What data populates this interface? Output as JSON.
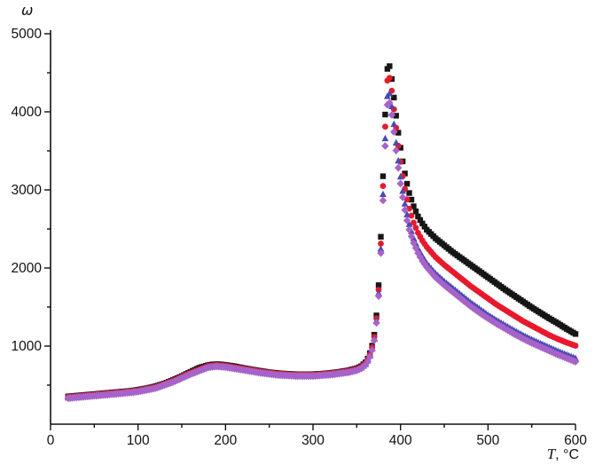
{
  "chart_data": {
    "type": "scatter",
    "title": "",
    "ylabel": "ω",
    "xlabel_symbol": "T",
    "xlabel_rest": ", °C",
    "xlim": [
      0,
      600
    ],
    "ylim": [
      0,
      5000
    ],
    "xticks": [
      0,
      100,
      200,
      300,
      400,
      500,
      600
    ],
    "yticks": [
      1000,
      2000,
      3000,
      4000,
      5000
    ],
    "x_minor_step": 50,
    "y_minor_step": 500,
    "grid": false,
    "legend": "none",
    "axis_color": "#111111",
    "sample_step": 2.5,
    "series": [
      {
        "name": "black-squares",
        "marker": "square",
        "color": "#161616",
        "peak": {
          "x": 386,
          "y": 4630
        },
        "anchors": [
          [
            20,
            355
          ],
          [
            30,
            365
          ],
          [
            40,
            375
          ],
          [
            50,
            385
          ],
          [
            60,
            395
          ],
          [
            70,
            405
          ],
          [
            80,
            415
          ],
          [
            90,
            425
          ],
          [
            100,
            440
          ],
          [
            110,
            460
          ],
          [
            120,
            485
          ],
          [
            130,
            520
          ],
          [
            140,
            565
          ],
          [
            150,
            615
          ],
          [
            160,
            670
          ],
          [
            170,
            722
          ],
          [
            180,
            755
          ],
          [
            185,
            765
          ],
          [
            190,
            768
          ],
          [
            195,
            765
          ],
          [
            200,
            758
          ],
          [
            210,
            742
          ],
          [
            220,
            720
          ],
          [
            230,
            700
          ],
          [
            240,
            682
          ],
          [
            250,
            665
          ],
          [
            260,
            653
          ],
          [
            270,
            645
          ],
          [
            280,
            640
          ],
          [
            290,
            638
          ],
          [
            300,
            640
          ],
          [
            310,
            646
          ],
          [
            320,
            656
          ],
          [
            330,
            670
          ],
          [
            340,
            688
          ],
          [
            350,
            715
          ],
          [
            355,
            742
          ],
          [
            360,
            792
          ],
          [
            363,
            850
          ],
          [
            366,
            940
          ],
          [
            369,
            1070
          ],
          [
            371,
            1220
          ],
          [
            373,
            1450
          ],
          [
            375,
            1780
          ],
          [
            377,
            2250
          ],
          [
            379,
            2850
          ],
          [
            381,
            3500
          ],
          [
            383,
            4120
          ],
          [
            385,
            4550
          ],
          [
            386,
            4630
          ],
          [
            388,
            4570
          ],
          [
            390,
            4420
          ],
          [
            392,
            4230
          ],
          [
            394,
            4040
          ],
          [
            396,
            3860
          ],
          [
            398,
            3690
          ],
          [
            400,
            3540
          ],
          [
            403,
            3330
          ],
          [
            406,
            3150
          ],
          [
            410,
            2960
          ],
          [
            415,
            2790
          ],
          [
            420,
            2660
          ],
          [
            425,
            2570
          ],
          [
            430,
            2490
          ],
          [
            440,
            2380
          ],
          [
            450,
            2290
          ],
          [
            460,
            2200
          ],
          [
            470,
            2120
          ],
          [
            480,
            2040
          ],
          [
            490,
            1960
          ],
          [
            500,
            1880
          ],
          [
            510,
            1800
          ],
          [
            520,
            1720
          ],
          [
            530,
            1645
          ],
          [
            540,
            1570
          ],
          [
            550,
            1495
          ],
          [
            560,
            1425
          ],
          [
            570,
            1355
          ],
          [
            580,
            1290
          ],
          [
            590,
            1220
          ],
          [
            600,
            1155
          ]
        ]
      },
      {
        "name": "red-circles",
        "marker": "circle",
        "color": "#e8192c",
        "peak": {
          "x": 386,
          "y": 4480
        },
        "anchors": [
          [
            20,
            348
          ],
          [
            40,
            368
          ],
          [
            60,
            388
          ],
          [
            80,
            408
          ],
          [
            100,
            432
          ],
          [
            120,
            476
          ],
          [
            140,
            556
          ],
          [
            160,
            660
          ],
          [
            180,
            745
          ],
          [
            190,
            758
          ],
          [
            200,
            748
          ],
          [
            220,
            712
          ],
          [
            240,
            674
          ],
          [
            260,
            646
          ],
          [
            280,
            633
          ],
          [
            300,
            633
          ],
          [
            320,
            649
          ],
          [
            340,
            680
          ],
          [
            350,
            706
          ],
          [
            355,
            732
          ],
          [
            360,
            780
          ],
          [
            363,
            836
          ],
          [
            366,
            922
          ],
          [
            369,
            1045
          ],
          [
            371,
            1190
          ],
          [
            373,
            1410
          ],
          [
            375,
            1720
          ],
          [
            377,
            2170
          ],
          [
            379,
            2740
          ],
          [
            381,
            3360
          ],
          [
            383,
            3960
          ],
          [
            385,
            4400
          ],
          [
            386,
            4480
          ],
          [
            388,
            4420
          ],
          [
            390,
            4270
          ],
          [
            392,
            4080
          ],
          [
            394,
            3890
          ],
          [
            396,
            3700
          ],
          [
            398,
            3520
          ],
          [
            400,
            3360
          ],
          [
            403,
            3140
          ],
          [
            406,
            2950
          ],
          [
            410,
            2760
          ],
          [
            415,
            2580
          ],
          [
            420,
            2450
          ],
          [
            425,
            2350
          ],
          [
            430,
            2270
          ],
          [
            440,
            2140
          ],
          [
            450,
            2040
          ],
          [
            460,
            1950
          ],
          [
            470,
            1860
          ],
          [
            480,
            1770
          ],
          [
            490,
            1690
          ],
          [
            500,
            1610
          ],
          [
            510,
            1530
          ],
          [
            520,
            1460
          ],
          [
            530,
            1390
          ],
          [
            540,
            1320
          ],
          [
            550,
            1260
          ],
          [
            560,
            1200
          ],
          [
            570,
            1140
          ],
          [
            580,
            1090
          ],
          [
            590,
            1045
          ],
          [
            600,
            1005
          ]
        ]
      },
      {
        "name": "blue-triangles",
        "marker": "triangle",
        "color": "#4a4ab2",
        "peak": {
          "x": 386,
          "y": 4280
        },
        "anchors": [
          [
            20,
            340
          ],
          [
            40,
            360
          ],
          [
            60,
            380
          ],
          [
            80,
            400
          ],
          [
            100,
            424
          ],
          [
            120,
            468
          ],
          [
            140,
            548
          ],
          [
            160,
            650
          ],
          [
            180,
            735
          ],
          [
            190,
            748
          ],
          [
            200,
            738
          ],
          [
            220,
            702
          ],
          [
            240,
            664
          ],
          [
            260,
            636
          ],
          [
            280,
            624
          ],
          [
            300,
            624
          ],
          [
            320,
            640
          ],
          [
            340,
            670
          ],
          [
            350,
            696
          ],
          [
            355,
            722
          ],
          [
            360,
            768
          ],
          [
            363,
            822
          ],
          [
            366,
            905
          ],
          [
            369,
            1025
          ],
          [
            371,
            1165
          ],
          [
            373,
            1380
          ],
          [
            375,
            1680
          ],
          [
            377,
            2110
          ],
          [
            379,
            2650
          ],
          [
            381,
            3240
          ],
          [
            383,
            3800
          ],
          [
            385,
            4200
          ],
          [
            386,
            4280
          ],
          [
            388,
            4220
          ],
          [
            390,
            4070
          ],
          [
            392,
            3890
          ],
          [
            394,
            3700
          ],
          [
            396,
            3510
          ],
          [
            398,
            3330
          ],
          [
            400,
            3170
          ],
          [
            403,
            2950
          ],
          [
            406,
            2760
          ],
          [
            410,
            2560
          ],
          [
            415,
            2380
          ],
          [
            420,
            2250
          ],
          [
            425,
            2150
          ],
          [
            430,
            2060
          ],
          [
            440,
            1930
          ],
          [
            450,
            1830
          ],
          [
            460,
            1740
          ],
          [
            470,
            1650
          ],
          [
            480,
            1560
          ],
          [
            490,
            1480
          ],
          [
            500,
            1400
          ],
          [
            510,
            1330
          ],
          [
            520,
            1265
          ],
          [
            530,
            1200
          ],
          [
            540,
            1140
          ],
          [
            550,
            1085
          ],
          [
            560,
            1035
          ],
          [
            570,
            985
          ],
          [
            580,
            935
          ],
          [
            590,
            890
          ],
          [
            600,
            845
          ]
        ]
      },
      {
        "name": "violet-diamonds",
        "marker": "diamond",
        "color": "#a763c9",
        "peak": {
          "x": 386,
          "y": 4160
        },
        "anchors": [
          [
            20,
            332
          ],
          [
            40,
            352
          ],
          [
            60,
            372
          ],
          [
            80,
            392
          ],
          [
            100,
            416
          ],
          [
            120,
            460
          ],
          [
            140,
            540
          ],
          [
            160,
            640
          ],
          [
            180,
            726
          ],
          [
            190,
            740
          ],
          [
            200,
            730
          ],
          [
            220,
            694
          ],
          [
            240,
            656
          ],
          [
            260,
            628
          ],
          [
            280,
            616
          ],
          [
            300,
            616
          ],
          [
            320,
            632
          ],
          [
            340,
            662
          ],
          [
            350,
            688
          ],
          [
            355,
            714
          ],
          [
            360,
            758
          ],
          [
            363,
            810
          ],
          [
            366,
            890
          ],
          [
            369,
            1005
          ],
          [
            371,
            1140
          ],
          [
            373,
            1350
          ],
          [
            375,
            1640
          ],
          [
            377,
            2060
          ],
          [
            379,
            2580
          ],
          [
            381,
            3150
          ],
          [
            383,
            3700
          ],
          [
            385,
            4090
          ],
          [
            386,
            4160
          ],
          [
            388,
            4100
          ],
          [
            390,
            3960
          ],
          [
            392,
            3790
          ],
          [
            394,
            3600
          ],
          [
            396,
            3410
          ],
          [
            398,
            3240
          ],
          [
            400,
            3080
          ],
          [
            403,
            2870
          ],
          [
            406,
            2680
          ],
          [
            410,
            2490
          ],
          [
            415,
            2320
          ],
          [
            420,
            2190
          ],
          [
            425,
            2090
          ],
          [
            430,
            2010
          ],
          [
            440,
            1880
          ],
          [
            450,
            1780
          ],
          [
            460,
            1690
          ],
          [
            470,
            1600
          ],
          [
            480,
            1510
          ],
          [
            490,
            1430
          ],
          [
            500,
            1355
          ],
          [
            510,
            1285
          ],
          [
            520,
            1220
          ],
          [
            530,
            1155
          ],
          [
            540,
            1095
          ],
          [
            550,
            1040
          ],
          [
            560,
            990
          ],
          [
            570,
            940
          ],
          [
            580,
            890
          ],
          [
            590,
            845
          ],
          [
            600,
            800
          ]
        ]
      }
    ]
  }
}
